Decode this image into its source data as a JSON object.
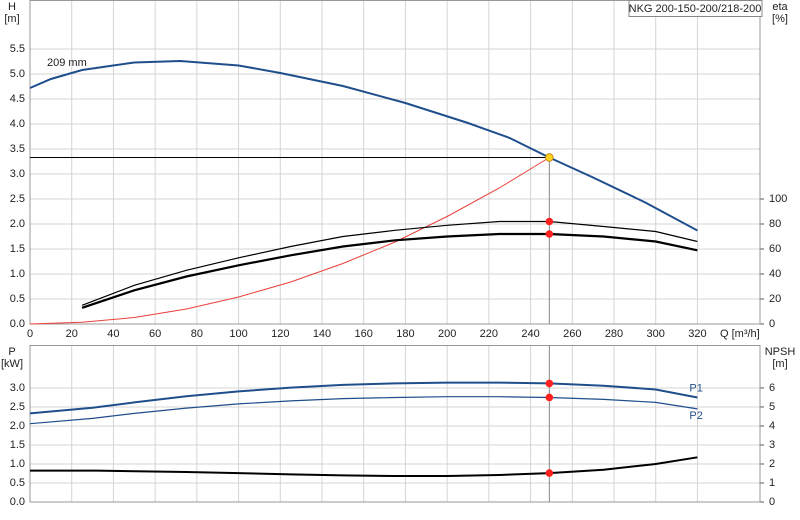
{
  "chart_data": [
    {
      "type": "line",
      "y_label": "H",
      "y_unit": "[m]",
      "y2_label": "eta",
      "y2_unit": "[%]",
      "x_label": "Q [m³/h]",
      "legend_box": "NKG 200-150-200/218-200",
      "annotation": "209 mm",
      "xlim": [
        0,
        350
      ],
      "xticks": [
        0,
        20,
        40,
        60,
        80,
        100,
        120,
        140,
        160,
        180,
        200,
        220,
        240,
        260,
        280,
        300,
        320
      ],
      "ylim": [
        0,
        6.48
      ],
      "yticks": [
        {
          "value": 0,
          "label": "0.0"
        },
        0.5,
        {
          "value": 1,
          "label": "1.0"
        },
        1.5,
        {
          "value": 2,
          "label": "2.0"
        },
        2.5,
        {
          "value": 3,
          "label": "3.0"
        },
        3.5,
        {
          "value": 4,
          "label": "4.0"
        },
        4.5,
        {
          "value": 5,
          "label": "5.0"
        },
        5.5
      ],
      "y2lim": [
        0,
        259.2
      ],
      "y2ticks": [
        0,
        20,
        40,
        60,
        80,
        100
      ],
      "grid": true,
      "operating_point": {
        "q": 249
      },
      "series": [
        {
          "color": "#1f4e8c",
          "line_width": 2,
          "x": [
            0,
            10,
            25,
            50,
            72,
            100,
            120,
            150,
            180,
            210,
            230,
            249,
            270,
            295,
            320
          ],
          "values": [
            4.72,
            4.9,
            5.08,
            5.23,
            5.26,
            5.17,
            5.02,
            4.76,
            4.42,
            4.02,
            3.72,
            3.33,
            2.93,
            2.43,
            1.87
          ],
          "point": 3.33,
          "point_color": "#ffd21f"
        },
        {
          "color": "#e8413a",
          "line_width": 1,
          "x": [
            0,
            25,
            50,
            75,
            100,
            125,
            150,
            175,
            200,
            225,
            249
          ],
          "values": [
            0,
            0.034,
            0.13,
            0.3,
            0.54,
            0.84,
            1.21,
            1.64,
            2.15,
            2.72,
            3.33
          ]
        },
        {
          "color": "#000000",
          "line_width": 1.2,
          "axis": "y2",
          "x": [
            25,
            50,
            75,
            100,
            125,
            150,
            175,
            200,
            225,
            249,
            275,
            300,
            320
          ],
          "values": [
            15,
            31,
            43,
            53,
            62,
            70,
            75,
            79,
            82,
            82,
            78,
            74,
            66
          ],
          "point": 82,
          "point_color": "#ff2020"
        },
        {
          "color": "#000000",
          "line_width": 2.2,
          "axis": "y2",
          "x": [
            25,
            50,
            75,
            100,
            125,
            150,
            175,
            200,
            225,
            249,
            275,
            300,
            320
          ],
          "values": [
            13,
            27,
            38,
            47,
            55,
            62,
            67,
            70,
            72,
            72,
            70,
            66,
            59
          ],
          "point": 72,
          "point_color": "#ff2020"
        }
      ]
    },
    {
      "type": "line",
      "y_label": "P",
      "y_unit": "[kW]",
      "y2_label": "NPSH",
      "y2_unit": "[m]",
      "xlim": [
        0,
        350
      ],
      "xticks": [
        0,
        20,
        40,
        60,
        80,
        100,
        120,
        140,
        160,
        180,
        200,
        220,
        240,
        260,
        280,
        300,
        320
      ],
      "ylim": [
        0,
        4.13
      ],
      "yticks": [
        {
          "value": 0,
          "label": "0.0"
        },
        0.5,
        {
          "value": 1,
          "label": "1.0"
        },
        1.5,
        {
          "value": 2,
          "label": "2.0"
        },
        2.5,
        {
          "value": 3,
          "label": "3.0"
        }
      ],
      "y2lim": [
        0,
        8.26
      ],
      "y2ticks": [
        0,
        1,
        2,
        3,
        4,
        5,
        6
      ],
      "grid": true,
      "operating_point": {
        "q": 249
      },
      "series": [
        {
          "name": "P1",
          "color": "#1f4e8c",
          "line_width": 2,
          "x": [
            0,
            30,
            50,
            75,
            100,
            125,
            150,
            175,
            200,
            225,
            249,
            275,
            300,
            320
          ],
          "values": [
            2.33,
            2.48,
            2.62,
            2.78,
            2.91,
            3.01,
            3.08,
            3.12,
            3.14,
            3.14,
            3.12,
            3.06,
            2.96,
            2.75
          ],
          "point": 3.12,
          "point_color": "#ff2020"
        },
        {
          "name": "P2",
          "color": "#1f4e8c",
          "line_width": 1.2,
          "x": [
            0,
            30,
            50,
            75,
            100,
            125,
            150,
            175,
            200,
            225,
            249,
            275,
            300,
            320
          ],
          "values": [
            2.06,
            2.2,
            2.33,
            2.47,
            2.58,
            2.66,
            2.72,
            2.75,
            2.77,
            2.77,
            2.75,
            2.7,
            2.62,
            2.45
          ],
          "point": 2.75,
          "point_color": "#ff2020"
        },
        {
          "color": "#000000",
          "line_width": 2,
          "axis": "y2",
          "x": [
            0,
            32,
            75,
            100,
            125,
            150,
            175,
            200,
            225,
            249,
            275,
            300,
            320
          ],
          "values": [
            1.65,
            1.65,
            1.58,
            1.52,
            1.45,
            1.4,
            1.37,
            1.37,
            1.42,
            1.52,
            1.7,
            2.0,
            2.35
          ],
          "point": 1.52,
          "point_color": "#ff2020"
        }
      ]
    }
  ]
}
